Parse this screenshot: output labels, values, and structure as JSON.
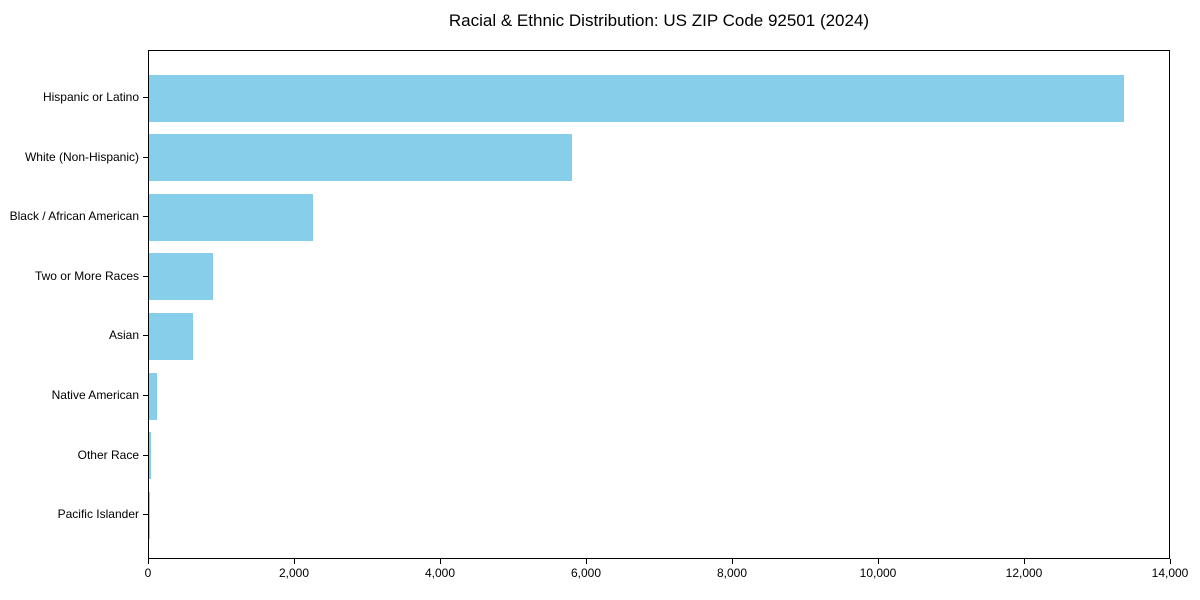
{
  "chart_data": {
    "type": "bar",
    "orientation": "horizontal",
    "title": "Racial & Ethnic Distribution: US ZIP Code 92501 (2024)",
    "categories": [
      "Hispanic or Latino",
      "White (Non-Hispanic)",
      "Black / African American",
      "Two or More Races",
      "Asian",
      "Native American",
      "Other Race",
      "Pacific Islander"
    ],
    "values": [
      13350,
      5800,
      2250,
      870,
      600,
      115,
      20,
      10
    ],
    "xlabel": "",
    "ylabel": "",
    "xlim": [
      0,
      14000
    ],
    "x_tick_values": [
      0,
      2000,
      4000,
      6000,
      8000,
      10000,
      12000,
      14000
    ],
    "x_tick_labels": [
      "0",
      "2,000",
      "4,000",
      "6,000",
      "8,000",
      "10,000",
      "12,000",
      "14,000"
    ],
    "grid": false,
    "legend": "none",
    "colors": {
      "bar_fill": "#87CEEB",
      "axis": "#000000",
      "text": "#000000",
      "background": "#ffffff"
    }
  }
}
